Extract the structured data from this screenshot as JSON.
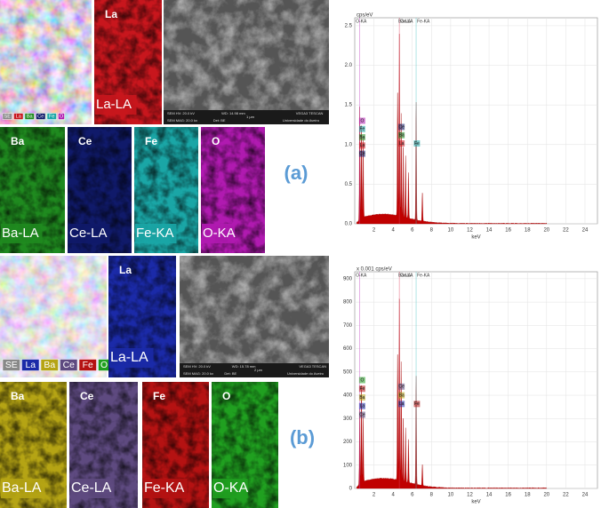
{
  "panels": [
    {
      "label": "(a)",
      "maps": [
        {
          "element": "La",
          "tag": "La-LA",
          "color": "#c8161d"
        },
        {
          "element": "Ba",
          "tag": "Ba-LA",
          "color": "#1f8a1f"
        },
        {
          "element": "Ce",
          "tag": "Ce-LA",
          "color": "#101a6a"
        },
        {
          "element": "Fe",
          "tag": "Fe-KA",
          "color": "#1aa6a6"
        },
        {
          "element": "O",
          "tag": "O-KA",
          "color": "#b01ab0"
        }
      ],
      "legend": [
        "SE",
        "La",
        "Ba",
        "Ce",
        "Fe",
        "O"
      ],
      "sem_info": [
        "SEM HV: 20.0 kV",
        "WD: 14.98 mm",
        "VEGA3 TESCAN",
        "SEM MAG: 20.0 kx",
        "Det: BE",
        "1 µm",
        "Universidade do Aveiro"
      ],
      "spectrum": {
        "unit": "cps/eV",
        "xlabel": "keV",
        "xlim": [
          0,
          25.3
        ],
        "ylim": [
          0,
          2.6
        ],
        "xticks": [
          2,
          4,
          6,
          8,
          10,
          12,
          14,
          16,
          18,
          20,
          22,
          24
        ],
        "yticks": [
          {
            "value": 0,
            "label": "0.0"
          },
          {
            "value": 0.5,
            "label": "0.5"
          },
          {
            "value": 1,
            "label": "1.0"
          },
          {
            "value": 1.5,
            "label": "1.5"
          },
          {
            "value": 2,
            "label": "2.0"
          },
          {
            "value": 2.5,
            "label": "2.5"
          }
        ],
        "top_labels": [
          "O-KA",
          "Ba-LA",
          "Ce-LA",
          "Fe-KA"
        ],
        "peak_labels": [
          "O",
          "Fe",
          "Ba",
          "La",
          "Ce",
          "Ce",
          "Ba",
          "La",
          "Fe"
        ]
      }
    },
    {
      "label": "(b)",
      "maps": [
        {
          "element": "La",
          "tag": "La-LA",
          "color": "#1b2aa8"
        },
        {
          "element": "Ba",
          "tag": "Ba-LA",
          "color": "#b5a414"
        },
        {
          "element": "Ce",
          "tag": "Ce-LA",
          "color": "#5e4a80"
        },
        {
          "element": "Fe",
          "tag": "Fe-KA",
          "color": "#b51212"
        },
        {
          "element": "O",
          "tag": "O-KA",
          "color": "#20a020"
        }
      ],
      "legend": [
        "SE",
        "La",
        "Ba",
        "Ce",
        "Fe",
        "O"
      ],
      "sem_info": [
        "SEM HV: 20.0 kV",
        "WD: 15.78 mm",
        "VEGA3 TESCAN",
        "SEM MAG: 20.0 kx",
        "Det: BE",
        "2 µm",
        "Universidade do Aveiro"
      ],
      "spectrum": {
        "unit": "x 0.001 cps/eV",
        "xlabel": "keV",
        "xlim": [
          0,
          25.3
        ],
        "ylim": [
          0,
          930
        ],
        "xticks": [
          2,
          4,
          6,
          8,
          10,
          12,
          14,
          16,
          18,
          20,
          22,
          24
        ],
        "yticks": [
          0,
          100,
          200,
          300,
          400,
          500,
          600,
          700,
          800,
          900
        ],
        "top_labels": [
          "O-KA",
          "Ba-LA",
          "Ce-LA",
          "Fe-KA"
        ],
        "peak_labels": [
          "O",
          "Fe",
          "Ba",
          "La",
          "Ce",
          "Ce",
          "Ba",
          "La",
          "Fe"
        ]
      }
    }
  ]
}
